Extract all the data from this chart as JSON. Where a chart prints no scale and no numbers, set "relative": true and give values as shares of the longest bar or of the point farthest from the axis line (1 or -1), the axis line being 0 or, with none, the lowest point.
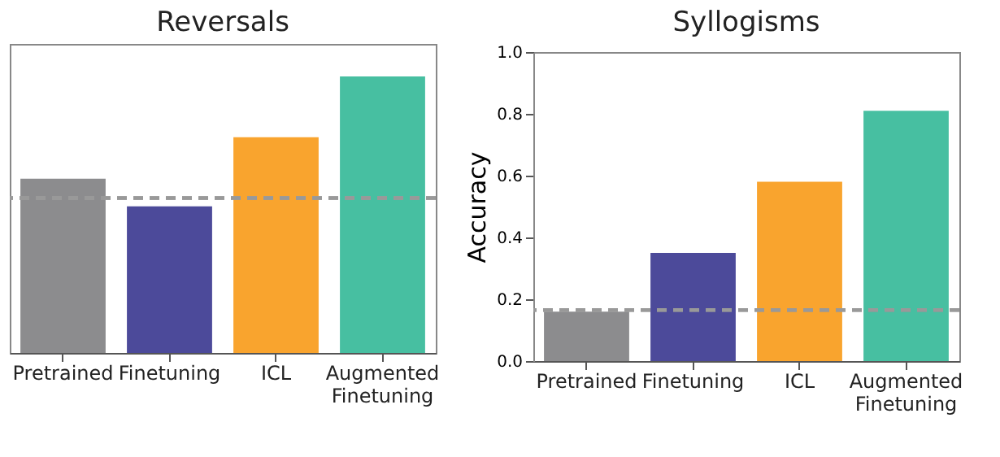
{
  "chart_data": [
    {
      "type": "bar",
      "title": "Reversals",
      "relative": true,
      "categories": [
        "Pretrained",
        "Finetuning",
        "ICL",
        "Augmented Finetuning"
      ],
      "values": [
        0.63,
        0.53,
        0.78,
        1
      ],
      "colors": [
        "#8c8c8e",
        "#4c4a9a",
        "#f9a42e",
        "#47bfa1"
      ],
      "ref_lines": [
        {
          "axis": "y",
          "value": 0.56,
          "color": "#999999",
          "line_style": "dashed"
        }
      ]
    },
    {
      "type": "bar",
      "title": "Syllogisms",
      "ylabel": "Accuracy",
      "categories": [
        "Pretrained",
        "Finetuning",
        "ICL",
        "Augmented Finetuning"
      ],
      "values": [
        0.16,
        0.35,
        0.58,
        0.81
      ],
      "colors": [
        "#8c8c8e",
        "#4c4a9a",
        "#f9a42e",
        "#47bfa1"
      ],
      "ylim": [
        0,
        1
      ],
      "yticks": [
        {
          "value": 0,
          "label": "0.0"
        },
        {
          "value": 0.2,
          "label": "0.2"
        },
        {
          "value": 0.4,
          "label": "0.4"
        },
        {
          "value": 0.6,
          "label": "0.6"
        },
        {
          "value": 0.8,
          "label": "0.8"
        },
        {
          "value": 1,
          "label": "1.0"
        }
      ],
      "ref_lines": [
        {
          "axis": "y",
          "value": 0.165,
          "color": "#999999",
          "line_style": "dashed"
        }
      ]
    }
  ]
}
